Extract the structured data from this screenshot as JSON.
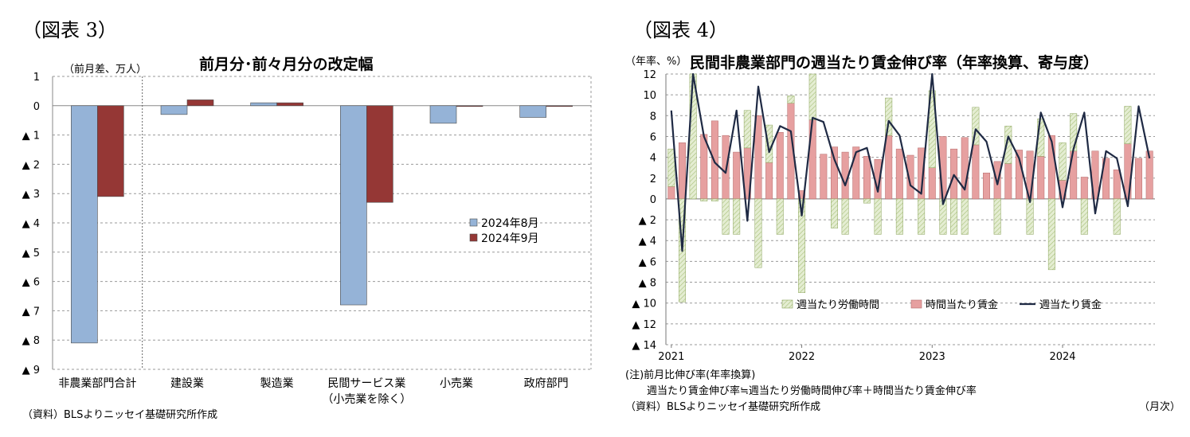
{
  "left": {
    "fig_label": "（図表 3）",
    "chart_data": {
      "type": "bar",
      "title": "前月分･前々月分の改定幅",
      "unit_label": "（前月差、万人）",
      "ylim": [
        -9,
        1
      ],
      "y_ticks": [
        1,
        0,
        -1,
        -2,
        -3,
        -4,
        -5,
        -6,
        -7,
        -8,
        -9
      ],
      "y_tick_labels": [
        "1",
        "0",
        "▲ 1",
        "▲ 2",
        "▲ 3",
        "▲ 4",
        "▲ 5",
        "▲ 6",
        "▲ 7",
        "▲ 8",
        "▲ 9"
      ],
      "categories": [
        "非農業部門合計",
        "建設業",
        "製造業",
        "民間サービス業\n（小売業を除く）",
        "小売業",
        "政府部門"
      ],
      "series": [
        {
          "name": "2024年8月",
          "color": "#95B3D7",
          "values": [
            -8.1,
            -0.3,
            0.1,
            -6.8,
            -0.6,
            -0.4
          ]
        },
        {
          "name": "2024年9月",
          "color": "#953735",
          "values": [
            -3.1,
            0.2,
            0.1,
            -3.3,
            0.0,
            0.0
          ]
        }
      ],
      "legend_position": "right-middle",
      "grid": true
    },
    "source": "（資料）BLSよりニッセイ基礎研究所作成"
  },
  "right": {
    "fig_label": "（図表 4）",
    "chart_data": {
      "type": "bar+line",
      "title": "民間非農業部門の週当たり賃金伸び率（年率換算、寄与度）",
      "unit_label": "（年率、%）",
      "ylim": [
        -14,
        12
      ],
      "y_ticks": [
        12,
        10,
        8,
        6,
        4,
        2,
        0,
        -2,
        -4,
        -6,
        -8,
        -10,
        -12,
        -14
      ],
      "y_tick_labels": [
        "12",
        "10",
        "8",
        "6",
        "4",
        "2",
        "0",
        "▲ 2",
        "▲ 4",
        "▲ 6",
        "▲ 8",
        "▲ 10",
        "▲ 12",
        "▲ 14"
      ],
      "x_tick_labels": [
        "2021",
        "2022",
        "2023",
        "2024"
      ],
      "x_unit_label": "（月次）",
      "series": [
        {
          "name": "週当たり労働時間",
          "kind": "bar",
          "color": "#D7E4BD",
          "values": [
            3.6,
            -9.9,
            13.5,
            -0.2,
            -0.2,
            -3.4,
            -3.4,
            3.6,
            -6.6,
            3.6,
            -3.4,
            0.7,
            -9.0,
            7.2,
            0,
            -2.8,
            -3.4,
            0,
            -0.4,
            -3.4,
            3.6,
            -3.4,
            0,
            -3.4,
            7.4,
            -3.4,
            -3.4,
            -3.4,
            3.6,
            0,
            -3.4,
            3.6,
            0,
            -3.4,
            3.6,
            -6.8,
            3.6,
            3.6,
            -3.4,
            0,
            0,
            -3.4,
            3.6,
            0,
            0
          ]
        },
        {
          "name": "時間当たり賃金",
          "kind": "bar",
          "color": "#E6A0A0",
          "values": [
            1.2,
            5.4,
            0,
            6.2,
            7.5,
            6.1,
            4.5,
            4.9,
            8.0,
            3.5,
            6.4,
            9.2,
            0.8,
            7.6,
            4.3,
            5.0,
            4.5,
            5.0,
            4.1,
            3.8,
            6.1,
            4.8,
            4.2,
            4.9,
            3.0,
            6.0,
            4.8,
            5.9,
            5.2,
            2.5,
            3.6,
            3.4,
            4.7,
            4.6,
            4.1,
            6.1,
            1.8,
            4.6,
            2.1,
            4.6,
            3.9,
            2.8,
            5.3,
            3.9,
            4.6
          ]
        },
        {
          "name": "週当たり賃金",
          "kind": "line",
          "color": "#1F2A44",
          "values": [
            8.5,
            -5.0,
            14.0,
            6.0,
            3.5,
            2.5,
            8.5,
            -2.1,
            10.8,
            4.5,
            7.0,
            6.5,
            -1.6,
            7.8,
            7.4,
            3.8,
            1.3,
            4.5,
            4.9,
            0.7,
            7.5,
            6.1,
            1.3,
            0.5,
            12.0,
            -0.5,
            2.3,
            0.9,
            6.7,
            5.5,
            1.4,
            6.0,
            3.9,
            -0.3,
            8.3,
            5.5,
            -0.8,
            4.8,
            8.3,
            -1.4,
            4.6,
            3.9,
            -0.7,
            8.9,
            3.9
          ]
        }
      ],
      "legend_position": "bottom-inside",
      "grid": true
    },
    "note_line1": "(注)前月比伸び率(年率換算)",
    "note_line2": "週当たり賃金伸び率≒週当たり労働時間伸び率＋時間当たり賃金伸び率",
    "source": "（資料）BLSよりニッセイ基礎研究所作成"
  }
}
